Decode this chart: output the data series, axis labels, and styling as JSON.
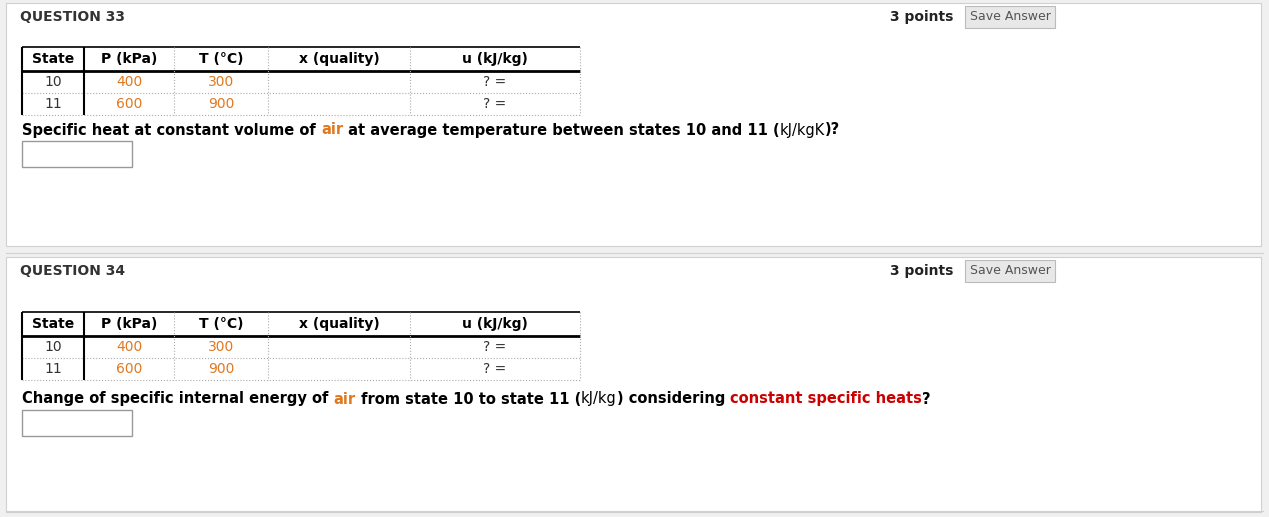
{
  "bg_color": "#f0f0f0",
  "panel_color": "#ffffff",
  "q33_label": "QUESTION 33",
  "q34_label": "QUESTION 34",
  "points_label": "3 points",
  "save_answer": "Save Answer",
  "col_headers": [
    "State",
    "P (kPa)",
    "T (°C)",
    "x (quality)",
    "u (kJ/kg)"
  ],
  "row1": [
    "10",
    "400",
    "300",
    "",
    "? ="
  ],
  "row2": [
    "11",
    "600",
    "900",
    "",
    "? ="
  ],
  "q33_text_parts": [
    [
      "Specific heat at constant volume of ",
      "#000000",
      true
    ],
    [
      "air",
      "#e07820",
      true
    ],
    [
      " at average temperature between states 10 and 11 (",
      "#000000",
      true
    ],
    [
      "kJ/kgK",
      "#000000",
      false
    ],
    [
      ")?",
      "#000000",
      true
    ]
  ],
  "q34_text_parts": [
    [
      "Change of specific internal energy of ",
      "#000000",
      true
    ],
    [
      "air",
      "#e07820",
      true
    ],
    [
      " from state 10 to state 11 (",
      "#000000",
      true
    ],
    [
      "kJ/kg",
      "#000000",
      false
    ],
    [
      ") considering ",
      "#000000",
      true
    ],
    [
      "constant specific heats",
      "#cc0000",
      true
    ],
    [
      "?",
      "#000000",
      true
    ]
  ],
  "value_color": "#e07820",
  "fig_width": 12.69,
  "fig_height": 5.17,
  "dpi": 100
}
